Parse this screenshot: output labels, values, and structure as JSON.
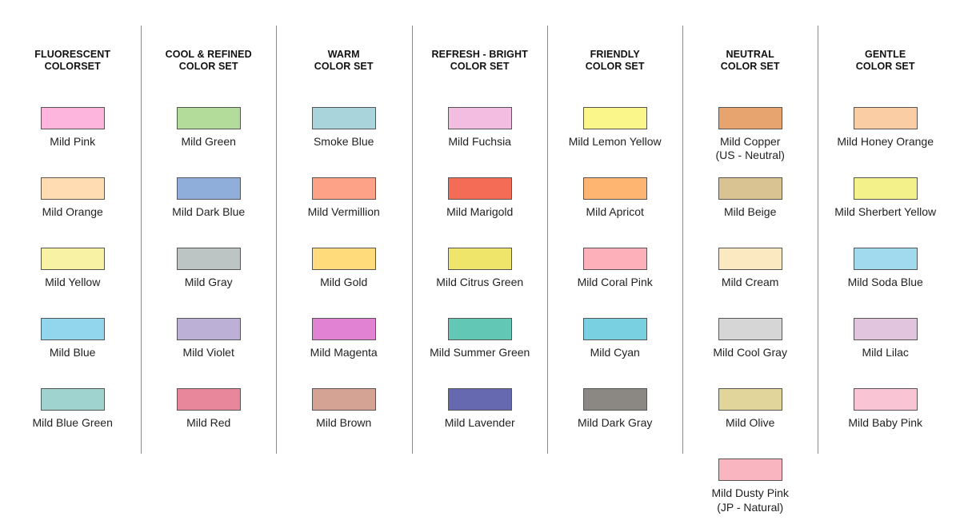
{
  "sets": [
    {
      "title": "FLUORESCENT\nCOLORSET",
      "colors": [
        {
          "name": "Mild Pink",
          "hex": "#FDB5DE"
        },
        {
          "name": "Mild Orange",
          "hex": "#FFDCB2"
        },
        {
          "name": "Mild Yellow",
          "hex": "#F8F2A4"
        },
        {
          "name": "Mild Blue",
          "hex": "#91D6ED"
        },
        {
          "name": "Mild Blue Green",
          "hex": "#9ED3CF"
        }
      ]
    },
    {
      "title": "COOL & REFINED\nCOLOR SET",
      "colors": [
        {
          "name": "Mild Green",
          "hex": "#B3DC9B"
        },
        {
          "name": "Mild Dark Blue",
          "hex": "#8FAED9"
        },
        {
          "name": "Mild Gray",
          "hex": "#BDC5C4"
        },
        {
          "name": "Mild Violet",
          "hex": "#BDB0D6"
        },
        {
          "name": "Mild Red",
          "hex": "#E8879C"
        }
      ]
    },
    {
      "title": "WARM\nCOLOR SET",
      "colors": [
        {
          "name": "Smoke Blue",
          "hex": "#A9D4DB"
        },
        {
          "name": "Mild Vermillion",
          "hex": "#FDA286"
        },
        {
          "name": "Mild Gold",
          "hex": "#FFDB7B"
        },
        {
          "name": "Mild Magenta",
          "hex": "#E183D2"
        },
        {
          "name": "Mild Brown",
          "hex": "#D4A393"
        }
      ]
    },
    {
      "title": "REFRESH - BRIGHT\nCOLOR SET",
      "colors": [
        {
          "name": "Mild Fuchsia",
          "hex": "#F3BDE2"
        },
        {
          "name": "Mild Marigold",
          "hex": "#F46C55"
        },
        {
          "name": "Mild Citrus Green",
          "hex": "#EFE56B"
        },
        {
          "name": "Mild Summer Green",
          "hex": "#62C8B5"
        },
        {
          "name": "Mild Lavender",
          "hex": "#6769B0"
        }
      ]
    },
    {
      "title": "FRIENDLY\nCOLOR SET",
      "colors": [
        {
          "name": "Mild Lemon Yellow",
          "hex": "#FBF68A"
        },
        {
          "name": "Mild Apricot",
          "hex": "#FEB571"
        },
        {
          "name": "Mild Coral Pink",
          "hex": "#FEB0BA"
        },
        {
          "name": "Mild Cyan",
          "hex": "#79D0E0"
        },
        {
          "name": "Mild Dark Gray",
          "hex": "#8B8883"
        }
      ]
    },
    {
      "title": "NEUTRAL\nCOLOR SET",
      "colors": [
        {
          "name": "Mild Copper",
          "note": "(US - Neutral)",
          "hex": "#E8A46E"
        },
        {
          "name": "Mild Beige",
          "hex": "#D9C392"
        },
        {
          "name": "Mild Cream",
          "hex": "#FBE9C2"
        },
        {
          "name": "Mild Cool Gray",
          "hex": "#D6D6D6"
        },
        {
          "name": "Mild Olive",
          "hex": "#E1D59C"
        },
        {
          "name": "Mild Dusty Pink",
          "note": "(JP - Natural)",
          "hex": "#F9B5C0"
        }
      ]
    },
    {
      "title": "GENTLE\nCOLOR SET",
      "colors": [
        {
          "name": "Mild Honey Orange",
          "hex": "#FBCDA4"
        },
        {
          "name": "Mild Sherbert Yellow",
          "hex": "#F3F18A"
        },
        {
          "name": "Mild Soda Blue",
          "hex": "#A1DAEE"
        },
        {
          "name": "Mild Lilac",
          "hex": "#E1C5DE"
        },
        {
          "name": "Mild Baby Pink",
          "hex": "#F9C4D3"
        }
      ]
    }
  ]
}
